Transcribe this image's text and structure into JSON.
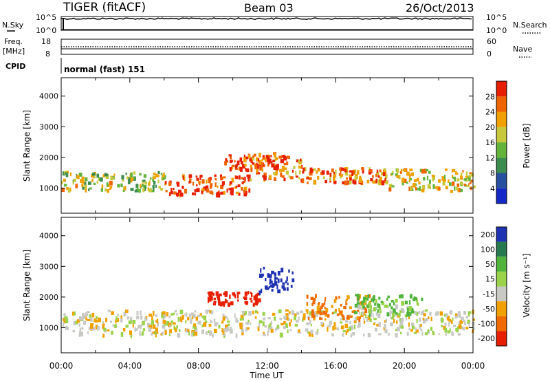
{
  "header": {
    "title": "TIGER (fitACF)",
    "beam": "Beam 03",
    "date": "26/Oct/2013"
  },
  "top_panels": {
    "nsky_label": "N.Sky",
    "nsky_ticks": [
      "10^5",
      "10^0"
    ],
    "nsearch_label": "N.Search",
    "nsearch_ticks": [
      "10^5",
      "10^0"
    ],
    "freq_label_line1": "Freq.",
    "freq_label_line2": "[MHz]",
    "freq_ticks": [
      "18",
      "8"
    ],
    "nave_label": "Nave",
    "nave_ticks": [
      "60",
      "0"
    ],
    "cpid_label": "CPID",
    "cpid_text": "normal (fast) 151"
  },
  "colors": {
    "power": [
      "#1428c8",
      "#2850a0",
      "#3c8c50",
      "#64b43c",
      "#c8c83c",
      "#f0a000",
      "#f06400",
      "#e81e00"
    ],
    "velocity": [
      "#2032b4",
      "#287850",
      "#50b43c",
      "#9ad24a",
      "#c8c8c4",
      "#f0a000",
      "#f06a00",
      "#e81e00"
    ]
  },
  "chart_data": [
    {
      "type": "heatmap",
      "title": "",
      "xlabel": "Time UT",
      "ylabel": "Slant Range [km]",
      "x_ticks": [
        "00:00",
        "04:00",
        "08:00",
        "12:00",
        "16:00",
        "20:00",
        "00:00"
      ],
      "y_ticks": [
        "1000",
        "2000",
        "3000",
        "4000"
      ],
      "xlim_hours": [
        0,
        24
      ],
      "ylim_km": [
        180,
        4600
      ],
      "colorbar_label": "Power [dB]",
      "colorbar_ticks": [
        "4",
        "8",
        "12",
        "16",
        "20",
        "24",
        "28"
      ],
      "colorbar_range": [
        0,
        32
      ],
      "bands": [
        {
          "t_hours": [
            0,
            6
          ],
          "center_km": 1250,
          "width_km": 400,
          "level": 4
        },
        {
          "t_hours": [
            6,
            11
          ],
          "center_km": 1150,
          "width_km": 400,
          "level": 7
        },
        {
          "t_hours": [
            11,
            14
          ],
          "center_km": 1700,
          "width_km": 500,
          "level": 6
        },
        {
          "t_hours": [
            9.5,
            13
          ],
          "center_km": 1900,
          "width_km": 350,
          "level": 7
        },
        {
          "t_hours": [
            14,
            19
          ],
          "center_km": 1450,
          "width_km": 300,
          "level": 6
        },
        {
          "t_hours": [
            19,
            24
          ],
          "center_km": 1300,
          "width_km": 450,
          "level": 5
        }
      ]
    },
    {
      "type": "heatmap",
      "title": "",
      "xlabel": "Time UT",
      "ylabel": "Slant Range [km]",
      "x_ticks": [
        "00:00",
        "04:00",
        "08:00",
        "12:00",
        "16:00",
        "20:00",
        "00:00"
      ],
      "y_ticks": [
        "1000",
        "2000",
        "3000",
        "4000"
      ],
      "xlim_hours": [
        0,
        24
      ],
      "ylim_km": [
        180,
        4600
      ],
      "colorbar_label": "Velocity [m s⁻¹]",
      "colorbar_ticks": [
        "200",
        "100",
        "50",
        "15",
        "-15",
        "-50",
        "-100",
        "-200"
      ],
      "colorbar_range": [
        -250,
        250
      ],
      "bands": [
        {
          "t_hours": [
            0,
            24
          ],
          "center_km": 1200,
          "width_km": 500,
          "velocity": 0
        },
        {
          "t_hours": [
            8.5,
            11.5
          ],
          "center_km": 2000,
          "width_km": 250,
          "velocity": -180
        },
        {
          "t_hours": [
            11.5,
            13.5
          ],
          "center_km": 2600,
          "width_km": 500,
          "velocity": 200
        },
        {
          "t_hours": [
            14,
            18
          ],
          "center_km": 1700,
          "width_km": 500,
          "velocity": -60
        },
        {
          "t_hours": [
            17,
            21
          ],
          "center_km": 1800,
          "width_km": 400,
          "velocity": 40
        }
      ]
    }
  ]
}
